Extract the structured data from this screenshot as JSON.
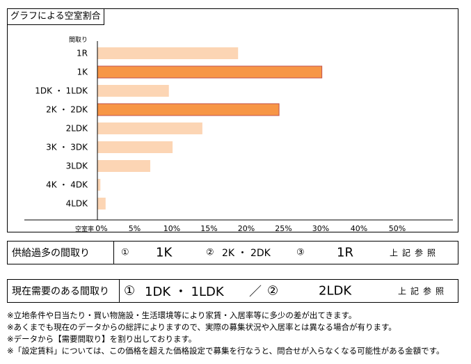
{
  "chart_data": {
    "type": "bar",
    "orientation": "horizontal",
    "title": "グラフによる空室割合",
    "category_axis_label": "間取り",
    "value_axis_label": "空室率",
    "categories": [
      "1R",
      "1K",
      "1DK ・ 1LDK",
      "2K ・ 2DK",
      "2LDK",
      "3K ・ 3DK",
      "3LDK",
      "4K ・ 4DK",
      "4LDK"
    ],
    "values": [
      18.9,
      30.3,
      9.6,
      24.4,
      14.1,
      10.1,
      7.1,
      0.4,
      1.1
    ],
    "highlight": [
      false,
      true,
      false,
      true,
      false,
      false,
      false,
      false,
      false
    ],
    "xlim": [
      0,
      50
    ],
    "tick_labels": [
      "0%",
      "5%",
      "10%",
      "15%",
      "20%",
      "25%",
      "30%",
      "40%",
      "50%"
    ],
    "grid": false,
    "colors": {
      "normal": "#FCD5B4",
      "highlight": "#F79646",
      "highlight_stroke": "#C0504D"
    }
  },
  "oversupply": {
    "label": "供給過多の間取り",
    "mark1": "①",
    "item1": "1K",
    "mark2": "②",
    "item2": "2K ・ 2DK",
    "mark3": "③",
    "item3": "1R",
    "ref": "上記参照"
  },
  "demand": {
    "label": "現在需要のある間取り",
    "mark1": "①",
    "item1": "1DK ・ 1LDK",
    "sep": "／",
    "mark2": "②",
    "item2": "2LDK",
    "ref": "上記参照"
  },
  "notes": [
    "※立地条件や日当たり・買い物施設・生活環境等により家賃・入居率等に多少の差が出てきます。",
    "※あくまでも現在のデータからの総評によりますので、実際の募集状況や入居率とは異なる場合が有ります。",
    "※データから【需要間取り】を割り出しております。",
    "※「設定賃料」については、この価格を超えた価格設定で募集を行なうと、問合せが入らなくなる可能性がある金額です。"
  ]
}
